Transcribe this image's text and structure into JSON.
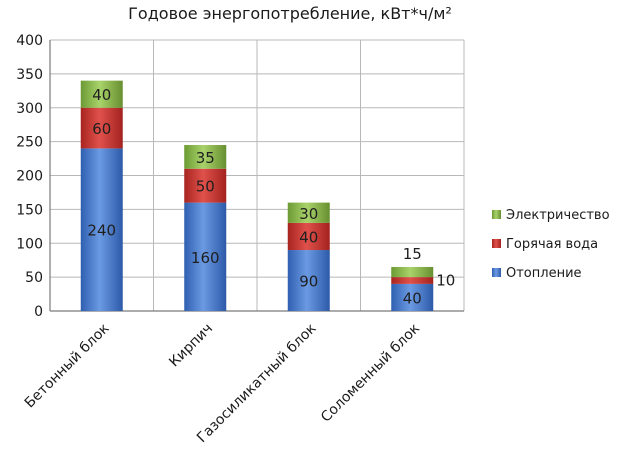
{
  "chart_data": {
    "type": "bar",
    "stacked": true,
    "title": "Годовое энергопотребление, кВт*ч/м²",
    "xlabel": "",
    "ylabel": "",
    "ylim": [
      0,
      400
    ],
    "yticks": [
      0,
      50,
      100,
      150,
      200,
      250,
      300,
      350,
      400
    ],
    "grid": true,
    "legend_position": "right",
    "categories": [
      "Бетонный блок",
      "Кирпич",
      "Газосиликатный блок",
      "Соломенный блок"
    ],
    "series": [
      {
        "name": "Отопление",
        "color": "#4a7ed0",
        "values": [
          240,
          160,
          90,
          40
        ]
      },
      {
        "name": "Горячая вода",
        "color": "#c9302c",
        "values": [
          60,
          50,
          40,
          10
        ]
      },
      {
        "name": "Электричество",
        "color": "#8cb84a",
        "values": [
          40,
          35,
          30,
          15
        ]
      }
    ]
  }
}
